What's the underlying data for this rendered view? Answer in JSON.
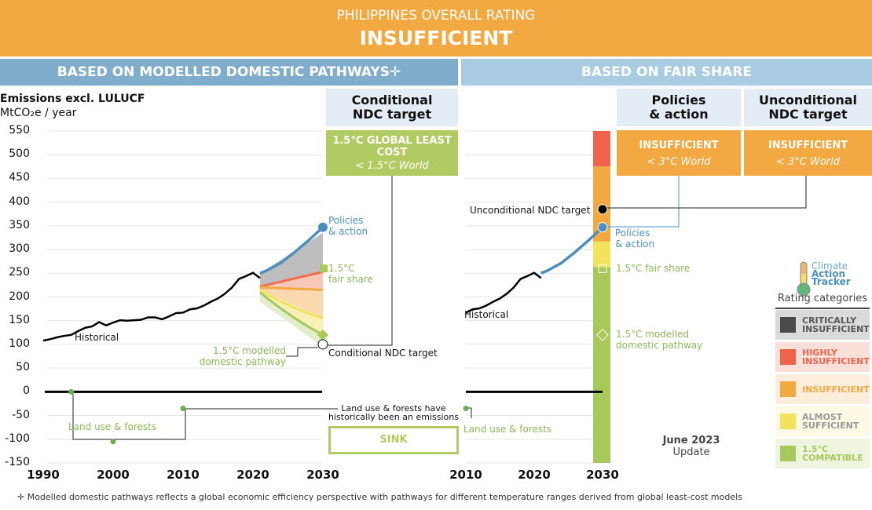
{
  "header": {
    "subtitle": "PHILIPPINES OVERALL RATING",
    "rating": "INSUFFICIENT"
  },
  "sections": {
    "left": "BASED ON MODELLED DOMESTIC PATHWAYS✛",
    "right": "BASED ON FAIR SHARE"
  },
  "columns": {
    "conditional": {
      "title1": "Conditional",
      "title2": "NDC target",
      "rating": "1.5°C GLOBAL LEAST COST",
      "world": "< 1.5°C World",
      "color": "#B1CB62"
    },
    "policies": {
      "title1": "Policies",
      "title2": "& action",
      "rating": "INSUFFICIENT",
      "world": "< 3°C World",
      "color": "#F3A942"
    },
    "unconditional": {
      "title1": "Unconditional",
      "title2": "NDC target",
      "rating": "INSUFFICIENT",
      "world": "< 3°C World",
      "color": "#F3A942"
    }
  },
  "labels": {
    "historical": "Historical",
    "policies1": "Policies",
    "policies2": "& action",
    "fair1": "1.5°C",
    "fair2": "fair share",
    "fair_right": "1.5°C fair share",
    "mod1": "1.5°C modelled",
    "mod2": "domestic pathway",
    "cond_ndc": "Conditional NDC target",
    "uncond_ndc": "Unconditional NDC target",
    "land": "Land use & forests",
    "sink1": "Land use & forests have",
    "sink2": "historically been an emissions",
    "sink3": "SINK"
  },
  "legend": {
    "logo1": "Climate",
    "logo2": "Action",
    "logo3": "Tracker",
    "title": "Rating categories",
    "items": [
      {
        "l1": "CRITICALLY",
        "l2": "INSUFFICIENT",
        "color": "#4A4A4A",
        "text": "#555555",
        "bg": "#DADADA"
      },
      {
        "l1": "HIGHLY",
        "l2": "INSUFFICIENT",
        "color": "#EE634A",
        "text": "#EE634A",
        "bg": "#FBE0DA"
      },
      {
        "l1": "INSUFFICIENT",
        "l2": "",
        "color": "#F3A942",
        "text": "#F3A942",
        "bg": "#FDEEDC"
      },
      {
        "l1": "ALMOST",
        "l2": "SUFFICIENT",
        "color": "#F1E35E",
        "text": "#999999",
        "bg": "#FCFAE4"
      },
      {
        "l1": "1.5°C",
        "l2": "COMPATIBLE",
        "color": "#A6C95A",
        "text": "#A6C95A",
        "bg": "#EEF4E0"
      }
    ]
  },
  "update": {
    "l1": "June 2023",
    "l2": "Update"
  },
  "footnote": "✛ Modelled domestic pathways reflects a global economic efficiency perspective with pathways for different temperature ranges derived from global least-cost models",
  "chart_data": {
    "type": "line",
    "ylabel_title": "Emissions excl. LULUCF",
    "yunit": "MtCO₂e / year",
    "ylim": [
      -150,
      550
    ],
    "yticks": [
      "550",
      "500",
      "450",
      "400",
      "350",
      "300",
      "250",
      "200",
      "150",
      "100",
      "50",
      "0",
      "-50",
      "-100",
      "-150"
    ],
    "left_xticks": [
      "1990",
      "2000",
      "2010",
      "2020",
      "2030"
    ],
    "right_xticks": [
      "2010",
      "2020",
      "2030"
    ],
    "historical": {
      "x": [
        1990,
        1991,
        1992,
        1993,
        1994,
        1995,
        1996,
        1997,
        1998,
        1999,
        2000,
        2001,
        2002,
        2003,
        2004,
        2005,
        2006,
        2007,
        2008,
        2009,
        2010,
        2011,
        2012,
        2013,
        2014,
        2015,
        2016,
        2017,
        2018,
        2019,
        2020,
        2021
      ],
      "y": [
        108,
        111,
        115,
        118,
        120,
        128,
        135,
        138,
        147,
        140,
        146,
        151,
        150,
        151,
        152,
        157,
        157,
        153,
        159,
        166,
        167,
        174,
        176,
        182,
        190,
        197,
        207,
        220,
        238,
        244,
        251,
        240
      ]
    },
    "policies_action": {
      "x": [
        2021,
        2022,
        2024,
        2026,
        2028,
        2030
      ],
      "y": [
        250,
        256,
        272,
        295,
        320,
        347
      ]
    },
    "pathways": {
      "x": [
        2021,
        2030
      ],
      "critically_top": [
        250,
        335
      ],
      "highly": [
        222,
        253
      ],
      "insufficient": [
        220,
        215
      ],
      "almost": [
        215,
        155
      ],
      "compatible": [
        210,
        120
      ],
      "compatible_low": [
        190,
        95
      ]
    },
    "targets": {
      "conditional_ndc": 100,
      "unconditional_ndc": 385,
      "fair_share_1_5": 260,
      "modelled_1_5": 120
    },
    "fair_share_bands": [
      {
        "from": 475,
        "to": 550,
        "color": "#EE634A"
      },
      {
        "from": 317,
        "to": 475,
        "color": "#F3A942"
      },
      {
        "from": 263,
        "to": 317,
        "color": "#F1E35E"
      },
      {
        "from": -150,
        "to": 263,
        "color": "#A6C95A"
      }
    ],
    "lulucf": [
      0,
      -35,
      -105,
      -35
    ],
    "colors": {
      "historical": "#000000",
      "policies": "#4A90BF",
      "grey": "#BDBDBD",
      "red": "#F26B4A",
      "orange": "#F3A942",
      "yellow": "#F1E35E",
      "green": "#A6C95A"
    }
  }
}
